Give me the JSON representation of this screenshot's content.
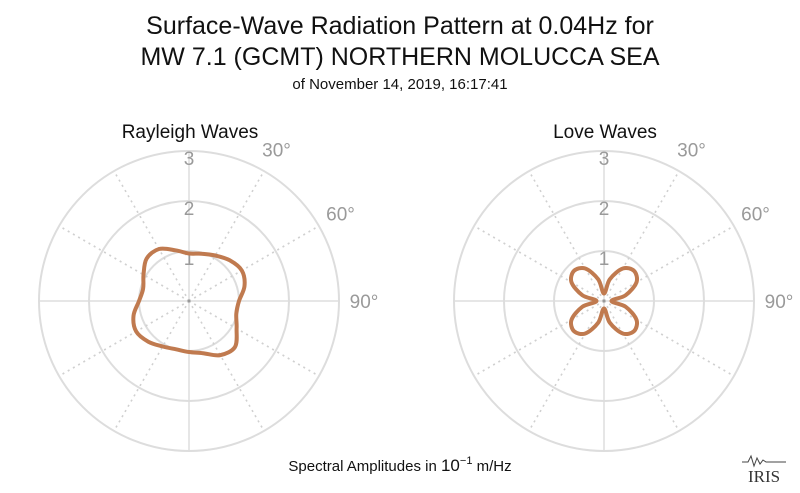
{
  "title_line1": "Surface-Wave Radiation Pattern at 0.04Hz for",
  "title_line2": "MW 7.1 (GCMT) NORTHERN MOLUCCA SEA",
  "subtitle": "of November 14, 2019, 16:17:41",
  "footer": {
    "prefix": "Spectral Amplitudes in ",
    "base": "10",
    "exponent": "−1",
    "unit": " m/Hz"
  },
  "logo_text": "IRIS",
  "colors": {
    "curve": "#c07a4f",
    "grid": "#dddddd",
    "tick": "#9a9a9a"
  },
  "chart_data": [
    {
      "type": "polar",
      "title": "Rayleigh Waves",
      "r_ticks": [
        "1",
        "2",
        "3"
      ],
      "r_max": 3,
      "angle_ticks": [
        "30°",
        "60°",
        "90°"
      ],
      "series": [
        {
          "azimuth_deg": [
            0,
            15,
            30,
            45,
            60,
            75,
            90,
            105,
            120,
            135,
            150,
            165,
            180,
            195,
            210,
            225,
            240,
            255,
            270,
            285,
            300,
            315,
            330,
            345
          ],
          "amplitude": [
            0.95,
            0.98,
            1.05,
            1.15,
            1.22,
            1.15,
            1.0,
            0.98,
            1.1,
            1.3,
            1.25,
            1.08,
            1.02,
            1.0,
            1.05,
            1.15,
            1.22,
            1.15,
            1.0,
            0.95,
            1.05,
            1.2,
            1.2,
            1.05
          ]
        }
      ]
    },
    {
      "type": "polar",
      "title": "Love Waves",
      "r_ticks": [
        "1",
        "2",
        "3"
      ],
      "r_max": 3,
      "angle_ticks": [
        "30°",
        "60°",
        "90°"
      ],
      "series": [
        {
          "azimuth_deg": [
            0,
            15,
            30,
            45,
            60,
            75,
            90,
            105,
            120,
            135,
            150,
            165,
            180,
            195,
            210,
            225,
            240,
            255,
            270,
            285,
            300,
            315,
            330,
            345
          ],
          "amplitude": [
            0.15,
            0.45,
            0.75,
            0.85,
            0.75,
            0.45,
            0.15,
            0.45,
            0.75,
            0.85,
            0.75,
            0.45,
            0.15,
            0.45,
            0.75,
            0.85,
            0.75,
            0.45,
            0.15,
            0.45,
            0.75,
            0.85,
            0.75,
            0.45
          ]
        }
      ]
    }
  ]
}
